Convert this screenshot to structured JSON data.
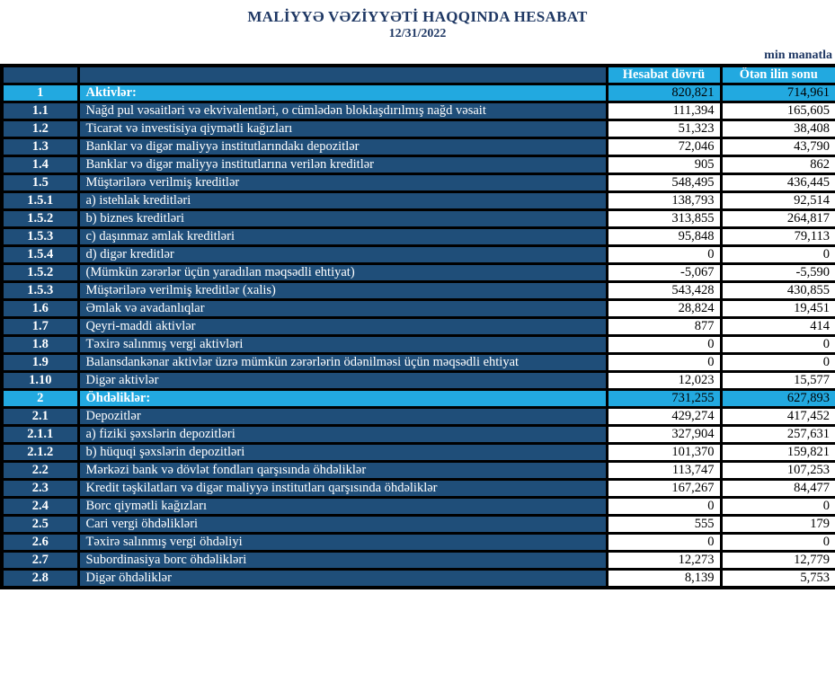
{
  "header": {
    "title": "MALİYYƏ VƏZİYYƏTİ HAQQINDA HESABAT",
    "date": "12/31/2022",
    "unit_note": "min manatla"
  },
  "colors": {
    "navy_row_bg": "#1F4E79",
    "cyan_accent": "#22A9E0",
    "title_text": "#1F3864",
    "grid_border": "#000000"
  },
  "table": {
    "columns": {
      "current_label": "Hesabat dövrü",
      "previous_label": "Ötən ilin sonu"
    },
    "rows": [
      {
        "num": "1",
        "label": "Aktivlər:",
        "current": "820,821",
        "previous": "714,961",
        "section": true
      },
      {
        "num": "1.1",
        "label": "Nağd pul vəsaitləri və  ekvivalentləri, o cümlədən bloklaşdırılmış nağd vəsait",
        "current": "111,394",
        "previous": "165,605"
      },
      {
        "num": "1.2",
        "label": "Ticarət və investisiya qiymətli kağızları",
        "current": "51,323",
        "previous": "38,408"
      },
      {
        "num": "1.3",
        "label": "Banklar və digər maliyyə institutlarındakı depozitlər",
        "current": "72,046",
        "previous": "43,790"
      },
      {
        "num": "1.4",
        "label": "Banklar və digər maliyyə institutlarına verilən kreditlər",
        "current": "905",
        "previous": "862"
      },
      {
        "num": "1.5",
        "label": "Müştərilərə verilmiş kreditlər",
        "current": "548,495",
        "previous": "436,445"
      },
      {
        "num": "1.5.1",
        "label": "a) istehlak kreditləri",
        "current": "138,793",
        "previous": "92,514"
      },
      {
        "num": "1.5.2",
        "label": "b) biznes kreditləri",
        "current": "313,855",
        "previous": "264,817"
      },
      {
        "num": "1.5.3",
        "label": "c) daşınmaz əmlak kreditləri",
        "current": "95,848",
        "previous": "79,113"
      },
      {
        "num": "1.5.4",
        "label": "d) digər kreditlər",
        "current": "0",
        "previous": "0"
      },
      {
        "num": "1.5.2",
        "label": "(Mümkün zərərlər üçün yaradılan məqsədli ehtiyat)",
        "current": "-5,067",
        "previous": "-5,590"
      },
      {
        "num": "1.5.3",
        "label": "Müştərilərə verilmiş kreditlər (xalis)",
        "current": "543,428",
        "previous": "430,855"
      },
      {
        "num": "1.6",
        "label": "Əmlak və avadanlıqlar",
        "current": "28,824",
        "previous": "19,451"
      },
      {
        "num": "1.7",
        "label": "Qeyri-maddi aktivlər",
        "current": "877",
        "previous": "414"
      },
      {
        "num": "1.8",
        "label": "Təxirə salınmış vergi aktivləri",
        "current": "0",
        "previous": "0"
      },
      {
        "num": "1.9",
        "label": "Balansdankənar aktivlər üzrə mümkün zərərlərin ödənilməsi üçün məqsədli ehtiyat",
        "current": "0",
        "previous": "0"
      },
      {
        "num": "1.10",
        "label": "Digər aktivlər",
        "current": "12,023",
        "previous": "15,577"
      },
      {
        "num": "2",
        "label": "Öhdəliklər:",
        "current": "731,255",
        "previous": "627,893",
        "section": true
      },
      {
        "num": "2.1",
        "label": "Depozitlər",
        "current": "429,274",
        "previous": "417,452"
      },
      {
        "num": "2.1.1",
        "label": "a) fiziki şəxslərin depozitləri",
        "current": "327,904",
        "previous": "257,631"
      },
      {
        "num": "2.1.2",
        "label": "b) hüquqi şəxslərin depozitləri",
        "current": "101,370",
        "previous": "159,821"
      },
      {
        "num": "2.2",
        "label": "Mərkəzi bank və dövlət fondları qarşısında öhdəliklər",
        "current": "113,747",
        "previous": "107,253"
      },
      {
        "num": "2.3",
        "label": "Kredit təşkilatları və digər maliyyə institutları qarşısında öhdəliklər",
        "current": "167,267",
        "previous": "84,477"
      },
      {
        "num": "2.4",
        "label": "Borc qiymətli kağızları",
        "current": "0",
        "previous": "0"
      },
      {
        "num": "2.5",
        "label": "Cari vergi öhdəlikləri",
        "current": "555",
        "previous": "179"
      },
      {
        "num": "2.6",
        "label": "Təxirə salınmış vergi öhdəliyi",
        "current": "0",
        "previous": "0"
      },
      {
        "num": "2.7",
        "label": "Subordinasiya borc öhdəlikləri",
        "current": "12,273",
        "previous": "12,779"
      },
      {
        "num": "2.8",
        "label": "Digər öhdəliklər",
        "current": "8,139",
        "previous": "5,753"
      }
    ]
  }
}
